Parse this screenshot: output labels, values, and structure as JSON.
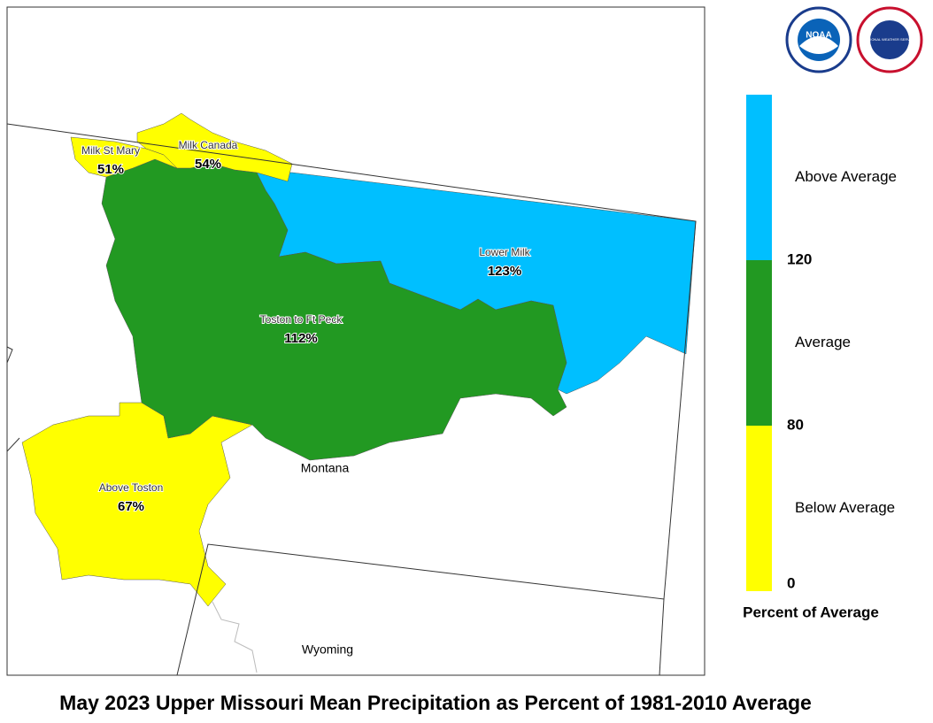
{
  "title": "May 2023 Upper Missouri Mean Precipitation as Percent of 1981-2010 Average",
  "logos": {
    "noaa": "NOAA",
    "nws": "NATIONAL WEATHER SERVICE"
  },
  "map": {
    "regions": [
      {
        "name": "Milk St Mary",
        "value": 51,
        "value_label": "51%"
      },
      {
        "name": "Milk Canada",
        "value": 54,
        "value_label": "54%"
      },
      {
        "name": "Toston to Ft Peck",
        "value": 112,
        "value_label": "112%"
      },
      {
        "name": "Lower Milk",
        "value": 123,
        "value_label": "123%"
      },
      {
        "name": "Above Toston",
        "value": 67,
        "value_label": "67%"
      }
    ],
    "states": [
      "Montana",
      "Wyoming"
    ]
  },
  "legend": {
    "title": "Percent of Average",
    "breaks": [
      0,
      80,
      120
    ],
    "classes": [
      {
        "label": "Below Average",
        "color": "#ffff00"
      },
      {
        "label": "Average",
        "color": "#229922"
      },
      {
        "label": "Above Average",
        "color": "#00bfff"
      }
    ]
  }
}
